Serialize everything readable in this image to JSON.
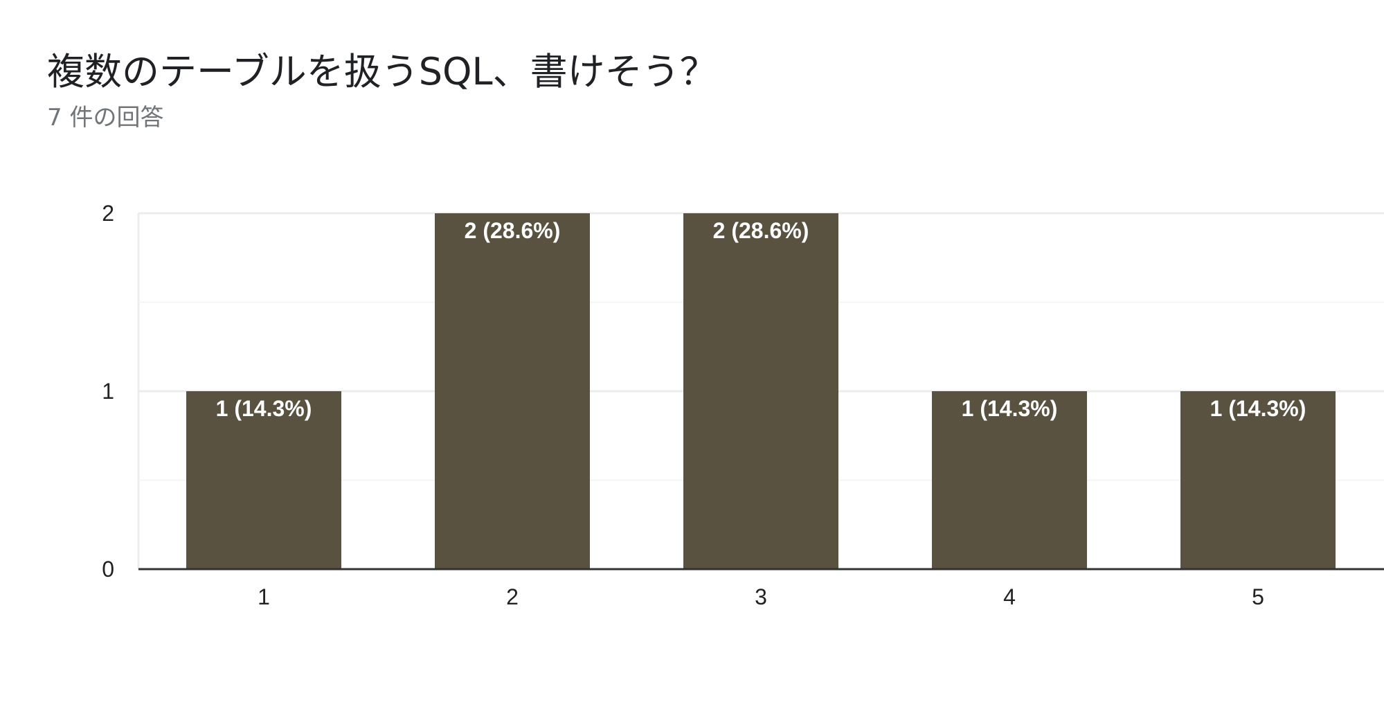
{
  "question": {
    "title": "複数のテーブルを扱うSQL、書けそう？",
    "response_count": "7 件の回答"
  },
  "colors": {
    "bar": "#5a5241",
    "gridline": "#ececec",
    "baseline": "#333333"
  },
  "chart_data": {
    "type": "bar",
    "title": "",
    "xlabel": "",
    "ylabel": "",
    "categories": [
      "1",
      "2",
      "3",
      "4",
      "5"
    ],
    "values": [
      1,
      2,
      2,
      1,
      1
    ],
    "data_labels": [
      "1 (14.3%)",
      "2 (28.6%)",
      "2 (28.6%)",
      "1 (14.3%)",
      "1 (14.3%)"
    ],
    "ylim": [
      0,
      2
    ],
    "y_ticks": [
      0,
      1,
      2
    ],
    "grid": true,
    "legend": "none"
  }
}
